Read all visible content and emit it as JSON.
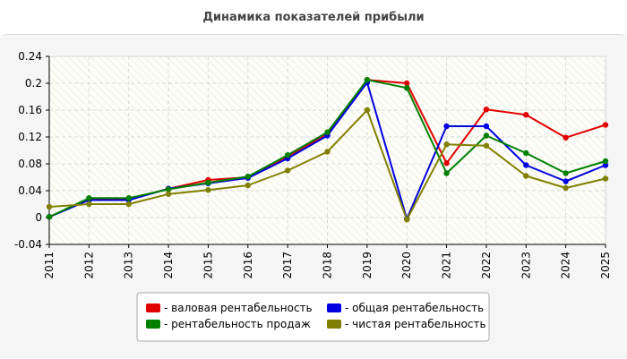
{
  "chart_data": {
    "type": "line",
    "title": "Динамика показателей прибыли",
    "xlabel": "",
    "ylabel": "",
    "ylim": [
      -0.04,
      0.24
    ],
    "y_ticks": [
      "-0.04",
      "0",
      "0.04",
      "0.08",
      "0.12",
      "0.16",
      "0.2",
      "0.24"
    ],
    "categories": [
      "2011",
      "2012",
      "2013",
      "2014",
      "2015",
      "2016",
      "2017",
      "2018",
      "2019",
      "2020",
      "2021",
      "2022",
      "2023",
      "2024",
      "2025"
    ],
    "grid": true,
    "legend_position": "bottom",
    "series": [
      {
        "name": "- валовая рентабельность",
        "color": "#e00000",
        "values": [
          0.001,
          0.027,
          0.027,
          0.043,
          0.056,
          0.06,
          0.091,
          0.124,
          0.205,
          0.2,
          0.081,
          0.161,
          0.153,
          0.119,
          0.138
        ]
      },
      {
        "name": "- общая рентабельность",
        "color": "#0000e0",
        "values": [
          0.001,
          0.026,
          0.026,
          0.043,
          0.051,
          0.059,
          0.088,
          0.122,
          0.201,
          -0.002,
          0.136,
          0.136,
          0.078,
          0.054,
          0.078
        ]
      },
      {
        "name": "- рентабельность продаж",
        "color": "#008000",
        "values": [
          0.001,
          0.029,
          0.029,
          0.042,
          0.052,
          0.061,
          0.093,
          0.127,
          0.205,
          0.193,
          0.066,
          0.122,
          0.096,
          0.066,
          0.084
        ]
      },
      {
        "name": "- чистая рентабельность",
        "color": "#808000",
        "values": [
          0.016,
          0.02,
          0.02,
          0.035,
          0.041,
          0.048,
          0.07,
          0.098,
          0.16,
          -0.003,
          0.109,
          0.107,
          0.062,
          0.044,
          0.058
        ]
      }
    ]
  }
}
